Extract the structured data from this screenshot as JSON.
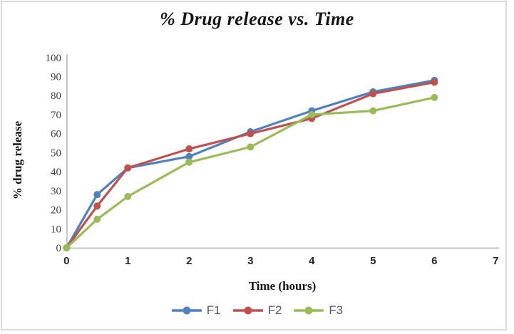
{
  "chart_data": {
    "type": "line",
    "title": "% Drug release vs. Time",
    "xlabel": "Time (hours)",
    "ylabel": "% drug release",
    "x": [
      0,
      0.5,
      1,
      2,
      3,
      4,
      5,
      6
    ],
    "series": [
      {
        "name": "F1",
        "color": "#4F81BD",
        "values": [
          0,
          28,
          42,
          48,
          61,
          72,
          82,
          88
        ]
      },
      {
        "name": "F2",
        "color": "#C0504D",
        "values": [
          0,
          22,
          42,
          52,
          60,
          68,
          81,
          87
        ]
      },
      {
        "name": "F3",
        "color": "#9BBB59",
        "values": [
          0,
          15,
          27,
          45,
          53,
          70,
          72,
          79
        ]
      }
    ],
    "xlim": [
      0,
      7
    ],
    "ylim": [
      0,
      100
    ],
    "xticks": [
      0,
      1,
      2,
      3,
      4,
      5,
      6,
      7
    ],
    "yticks": [
      0,
      10,
      20,
      30,
      40,
      50,
      60,
      70,
      80,
      90,
      100
    ],
    "grid": false,
    "legend_position": "bottom",
    "axis_color": "#BFBFBF",
    "frame_color": "#D9D9D9",
    "legend_text_color": "#595959"
  }
}
